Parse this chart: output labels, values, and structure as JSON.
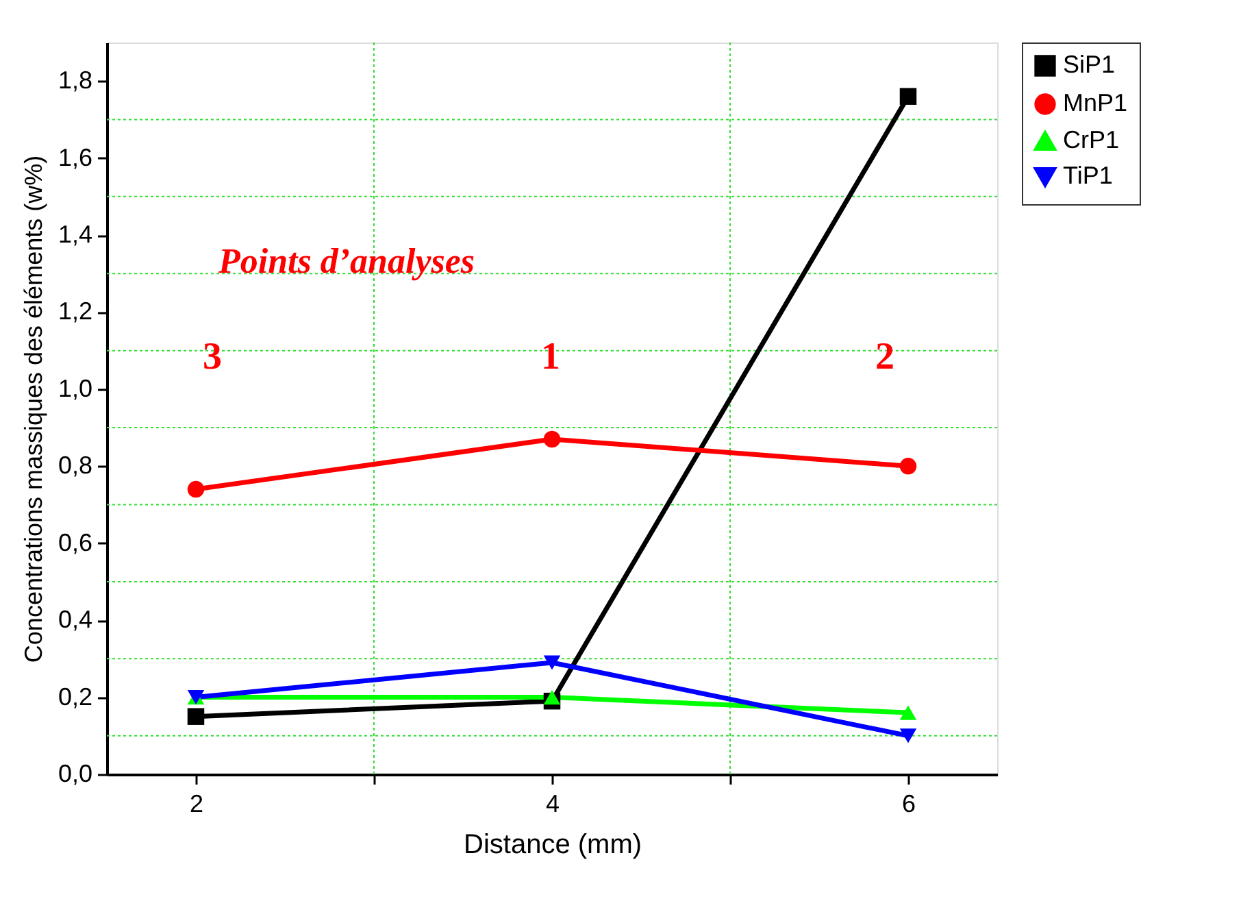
{
  "chart_data": {
    "type": "line",
    "xlabel": "Distance (mm)",
    "ylabel": "Concentrations massiques des éléments (w%)",
    "x": [
      2,
      4,
      6
    ],
    "series": [
      {
        "name": "SiP1",
        "color": "#000000",
        "marker": "square",
        "values": [
          0.15,
          0.19,
          1.76
        ]
      },
      {
        "name": "MnP1",
        "color": "#ff0000",
        "marker": "circle",
        "values": [
          0.74,
          0.87,
          0.8
        ]
      },
      {
        "name": "CrP1",
        "color": "#00ff00",
        "marker": "triangle",
        "values": [
          0.2,
          0.2,
          0.16
        ]
      },
      {
        "name": "TiP1",
        "color": "#0000ff",
        "marker": "triangle-down",
        "values": [
          0.2,
          0.29,
          0.1
        ]
      }
    ],
    "xlim": [
      1.5,
      6.5
    ],
    "xticks": [
      2,
      {
        "value": 3,
        "label": null
      },
      4,
      {
        "value": 5,
        "label": null
      },
      6
    ],
    "ylim": [
      0,
      1.9
    ],
    "yticks": [
      {
        "value": 0,
        "label": "0,0"
      },
      {
        "value": 0.1,
        "label": null
      },
      {
        "value": 0.2,
        "label": "0,2"
      },
      {
        "value": 0.3,
        "label": null
      },
      {
        "value": 0.4,
        "label": "0,4"
      },
      {
        "value": 0.5,
        "label": null
      },
      {
        "value": 0.6,
        "label": "0,6"
      },
      {
        "value": 0.7,
        "label": null
      },
      {
        "value": 0.8,
        "label": "0,8"
      },
      {
        "value": 0.9,
        "label": null
      },
      {
        "value": 1.0,
        "label": "1,0"
      },
      {
        "value": 1.1,
        "label": null
      },
      {
        "value": 1.2,
        "label": "1,2"
      },
      {
        "value": 1.3,
        "label": null
      },
      {
        "value": 1.4,
        "label": "1,4"
      },
      {
        "value": 1.5,
        "label": null
      },
      {
        "value": 1.6,
        "label": "1,6"
      },
      {
        "value": 1.7,
        "label": null
      },
      {
        "value": 1.8,
        "label": "1,8"
      }
    ],
    "grid": true,
    "legend": "top right",
    "line_style": "solid",
    "annotations": [
      "Points d’analyses",
      "3",
      "1",
      "2"
    ]
  }
}
